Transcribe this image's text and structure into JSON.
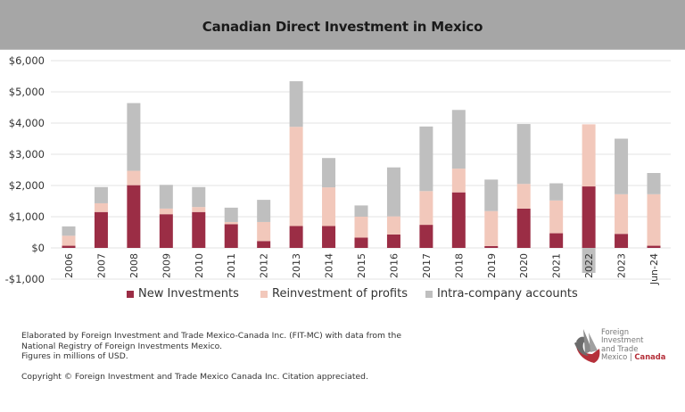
{
  "header": {
    "title": "Canadian Direct Investment in Mexico"
  },
  "colors": {
    "new_investments": "#9b2d45",
    "reinvestment": "#f2c8bb",
    "intra_company": "#bfbfbf",
    "header_bg": "#a6a6a6",
    "gridline": "#e3e3e3"
  },
  "chart_data": {
    "type": "bar",
    "stacked": true,
    "title": "Canadian Direct Investment in Mexico",
    "xlabel": "",
    "ylabel": "",
    "units": "millions of USD",
    "ylim": [
      -1000,
      6000
    ],
    "yticks": [
      6000,
      5000,
      4000,
      3000,
      2000,
      1000,
      0,
      -1000
    ],
    "ytick_labels": [
      "$6,000",
      "$5,000",
      "$4,000",
      "$3,000",
      "$2,000",
      "$1,000",
      "$0",
      "-$1,000"
    ],
    "grid": true,
    "legend_position": "bottom",
    "categories": [
      "2006",
      "2007",
      "2008",
      "2009",
      "2010",
      "2011",
      "2012",
      "2013",
      "2014",
      "2015",
      "2016",
      "2017",
      "2018",
      "2019",
      "2020",
      "2021",
      "2022",
      "2023",
      "Jun-24"
    ],
    "series": [
      {
        "name": "New Investments",
        "color": "#9b2d45",
        "values": [
          70,
          1150,
          2010,
          1080,
          1150,
          760,
          220,
          700,
          700,
          330,
          430,
          740,
          1780,
          60,
          1260,
          470,
          1970,
          450,
          70
        ]
      },
      {
        "name": "Reinvestment of profits",
        "color": "#f2c8bb",
        "values": [
          320,
          280,
          460,
          180,
          160,
          70,
          610,
          3180,
          1240,
          670,
          580,
          1080,
          760,
          1120,
          790,
          1050,
          1990,
          1270,
          1650
        ]
      },
      {
        "name": "Intra-company accounts",
        "color": "#bfbfbf",
        "values": [
          300,
          520,
          2170,
          760,
          640,
          460,
          710,
          1460,
          940,
          360,
          1570,
          2070,
          1880,
          1010,
          1920,
          550,
          -800,
          1780,
          680
        ]
      }
    ]
  },
  "legend": {
    "items": [
      {
        "label": "New Investments",
        "color": "#9b2d45"
      },
      {
        "label": "Reinvestment of profits",
        "color": "#f2c8bb"
      },
      {
        "label": "Intra-company accounts",
        "color": "#bfbfbf"
      }
    ]
  },
  "notes": {
    "line1": "Elaborated by Foreign Investment and Trade Mexico-Canada  Inc. (FIT-MC) with data from the",
    "line2": "National Registry of Foreign Investments Mexico.",
    "line3": "Figures in millions of USD.",
    "copyright": "Copyright © Foreign Investment and Trade Mexico Canada Inc. Citation appreciated."
  },
  "logo": {
    "line1": "Foreign",
    "line2": "Investment",
    "line3": "and Trade",
    "line4_prefix": "Mexico | ",
    "line4_accent": "Canada"
  }
}
